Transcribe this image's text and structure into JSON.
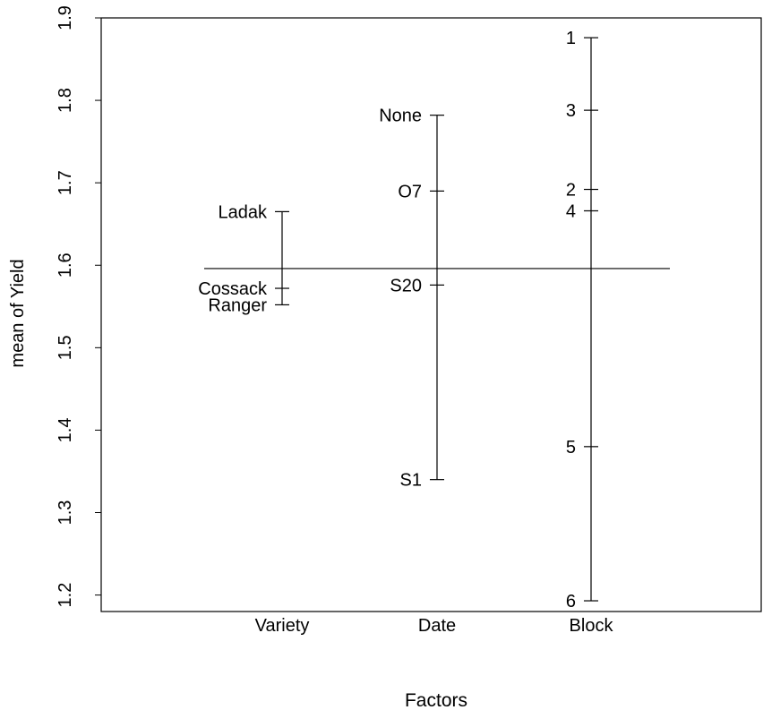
{
  "chart_data": {
    "type": "design-plot",
    "xlabel": "Factors",
    "ylabel": "mean of Yield",
    "ylim": [
      1.18,
      1.9
    ],
    "yticks": [
      "1.2",
      "1.3",
      "1.4",
      "1.5",
      "1.6",
      "1.7",
      "1.8",
      "1.9"
    ],
    "categories": [
      "Variety",
      "Date",
      "Block"
    ],
    "grand_mean": 1.596,
    "series": [
      {
        "factor": "Variety",
        "levels": [
          {
            "label": "Ladak",
            "value": 1.665
          },
          {
            "label": "Cossack",
            "value": 1.572
          },
          {
            "label": "Ranger",
            "value": 1.552
          }
        ]
      },
      {
        "factor": "Date",
        "levels": [
          {
            "label": "None",
            "value": 1.782
          },
          {
            "label": "O7",
            "value": 1.69
          },
          {
            "label": "S20",
            "value": 1.576
          },
          {
            "label": "S1",
            "value": 1.34
          }
        ]
      },
      {
        "factor": "Block",
        "levels": [
          {
            "label": "1",
            "value": 1.876
          },
          {
            "label": "3",
            "value": 1.788
          },
          {
            "label": "2",
            "value": 1.692
          },
          {
            "label": "4",
            "value": 1.666
          },
          {
            "label": "5",
            "value": 1.38
          },
          {
            "label": "6",
            "value": 1.193
          }
        ]
      }
    ]
  }
}
